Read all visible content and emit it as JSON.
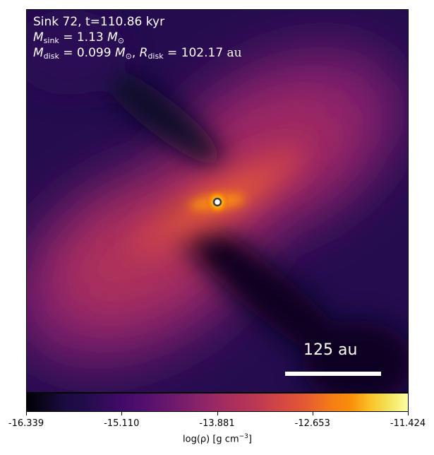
{
  "annotation": {
    "line1": "Sink 72, t=110.86 kyr",
    "m_sink_symbol": "M",
    "m_sink_sub": "sink",
    "m_sink_value": " = 1.13 ",
    "m_sun_symbol": "M",
    "m_sun_sub": "⊙",
    "m_disk_symbol": "M",
    "m_disk_sub": "disk",
    "m_disk_value": " = 0.099 ",
    "r_disk_symbol": "R",
    "r_disk_sub": "disk",
    "r_disk_value": " = 102.17 ",
    "r_disk_unit": "au"
  },
  "scale_bar": {
    "label": "125 au"
  },
  "colorbar": {
    "label_prefix": "log(ρ) [g cm",
    "label_exp": "−3",
    "label_suffix": "]",
    "ticks": [
      "-16.339",
      "-15.110",
      "-13.881",
      "-12.653",
      "-11.424"
    ],
    "min": -16.339,
    "max": -11.424,
    "colormap": "inferno"
  },
  "colors": {
    "dark": "#000004",
    "deep_purple": "#210c4a",
    "purple": "#56106e",
    "magenta": "#89226a",
    "red": "#bb3754",
    "orange_red": "#e35933",
    "orange": "#f98e09",
    "yellow": "#f3e35a",
    "pale_yellow": "#fcffa4"
  }
}
